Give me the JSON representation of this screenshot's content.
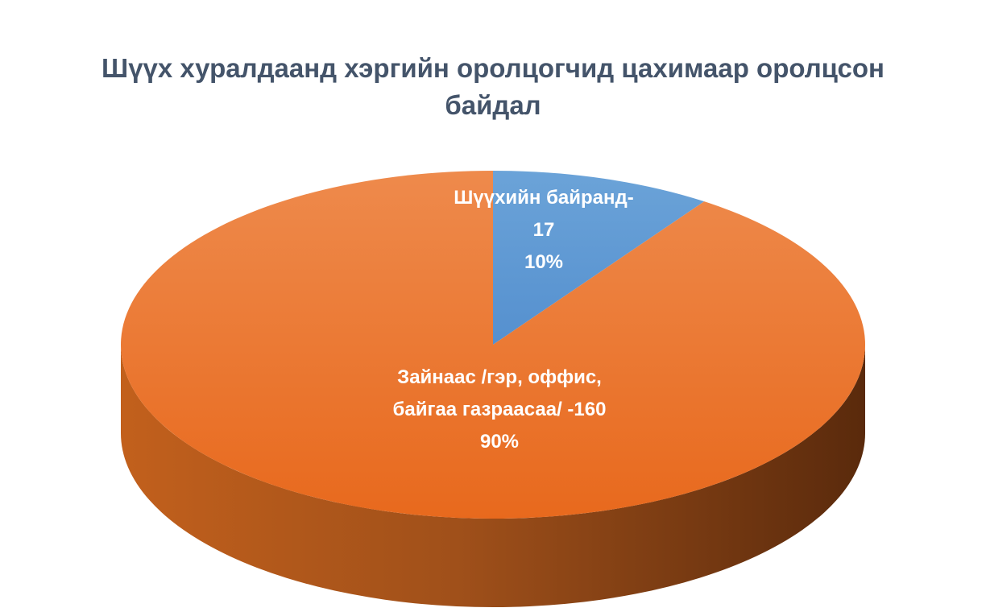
{
  "chart_data": {
    "type": "pie",
    "title_lines": [
      "Шүүх хуралдаанд хэргийн оролцогчид цахимаар оролцсон",
      "байдал"
    ],
    "start_angle_deg": 0,
    "slices": [
      {
        "label_lines": [
          "Шүүхийн байранд-",
          "17"
        ],
        "value": 17,
        "percent_label": "10%",
        "color": "#5b9bd5",
        "side_color": "#2e5c86"
      },
      {
        "label_lines": [
          "Зайнаас /гэр, оффис,",
          "байгаа газраасаа/ -160"
        ],
        "value": 160,
        "percent_label": "90%",
        "color": "#ed7d31",
        "side_color": "#8c4112"
      }
    ],
    "legend": "none",
    "three_d": true
  }
}
